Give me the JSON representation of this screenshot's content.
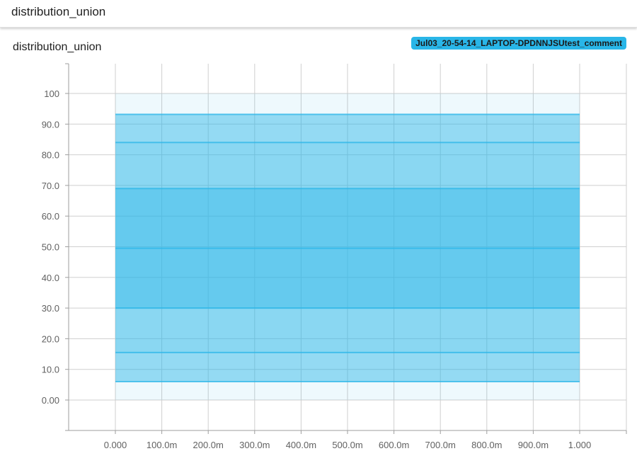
{
  "header": {
    "title": "distribution_union"
  },
  "card": {
    "title": "distribution_union",
    "run_label": "Jul03_20-54-14_LAPTOP-DPDNNJSUtest_comment",
    "run_color": "#29b6e8"
  },
  "chart_data": {
    "type": "area",
    "x_ticks": [
      "0.000",
      "100.0m",
      "200.0m",
      "300.0m",
      "400.0m",
      "500.0m",
      "600.0m",
      "700.0m",
      "800.0m",
      "900.0m",
      "1.000"
    ],
    "y_ticks": [
      "0.00",
      "10.0",
      "20.0",
      "30.0",
      "40.0",
      "50.0",
      "60.0",
      "70.0",
      "80.0",
      "90.0",
      "100"
    ],
    "xlim": [
      0,
      1
    ],
    "ylim": [
      0,
      100
    ],
    "x_range_data": [
      0,
      1
    ],
    "grid": true,
    "color": "#29b6e8",
    "percentile_values": [
      0,
      6,
      15.5,
      30,
      49.5,
      69,
      84,
      93.2,
      100
    ],
    "bands": [
      {
        "low": 0,
        "high": 6,
        "opacity": 0.08
      },
      {
        "low": 6,
        "high": 15.5,
        "opacity": 0.5
      },
      {
        "low": 15.5,
        "high": 30,
        "opacity": 0.55
      },
      {
        "low": 30,
        "high": 49.5,
        "opacity": 0.72
      },
      {
        "low": 49.5,
        "high": 69,
        "opacity": 0.72
      },
      {
        "low": 69,
        "high": 84,
        "opacity": 0.55
      },
      {
        "low": 84,
        "high": 93.2,
        "opacity": 0.5
      },
      {
        "low": 93.2,
        "high": 100,
        "opacity": 0.08
      }
    ]
  }
}
